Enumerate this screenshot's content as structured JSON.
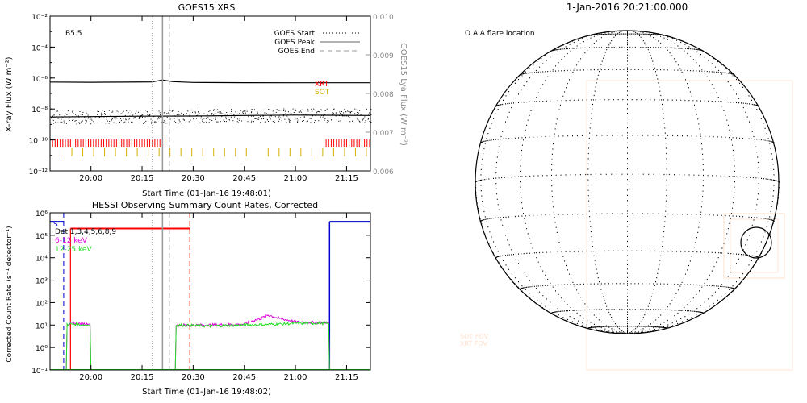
{
  "colors": {
    "black": "#000000",
    "gray": "#9a9a9a",
    "red": "#ff0000",
    "gold": "#d4b000",
    "magenta": "#e000e0",
    "green": "#22dd22",
    "blue": "#0000cc",
    "faint": "#ffe0cc"
  },
  "goes": {
    "title": "GOES15 XRS",
    "class_label": "B5.5",
    "ylabel": "X-ray Flux (W m⁻²)",
    "ylabel_right": "GOES15 Lya Flux (W m⁻²)",
    "xlabel": "Start Time (01-Jan-16 19:48:01)",
    "legend": [
      {
        "label": "GOES Start",
        "style": "dotted"
      },
      {
        "label": "GOES Peak",
        "style": "solid"
      },
      {
        "label": "GOES End",
        "style": "dashed"
      }
    ],
    "instrument_labels": [
      {
        "label": "XRT",
        "color": "#ff0000"
      },
      {
        "label": "SOT",
        "color": "#d4b000"
      }
    ]
  },
  "hessi": {
    "title": "HESSI Observing Summary Count Rates, Corrected",
    "ylabel": "Corrected Count Rate (s⁻¹ detector⁻¹)",
    "xlabel": "Start Time (01-Jan-16 19:48:02)",
    "flag_label": "S",
    "legend": [
      {
        "label": "Det 1,3,4,5,6,8,9",
        "color": "#000000"
      },
      {
        "label": "6-12 keV",
        "color": "#e000e0"
      },
      {
        "label": "12-25 keV",
        "color": "#22dd22"
      }
    ]
  },
  "sun": {
    "title": "1-Jan-2016 20:21:00.000",
    "legend": "O AIA flare location",
    "faint_labels": [
      "SOT FOV",
      "XRT FOV"
    ]
  },
  "chart_data": [
    {
      "type": "line",
      "title": "GOES15 XRS",
      "xlabel": "Start Time (01-Jan-16 19:48:01)",
      "ylabel": "X-ray Flux (W m⁻²)",
      "ylabel_right": "GOES15 Lya Flux (W m⁻²)",
      "x_range": [
        "19:48",
        "21:22"
      ],
      "ylim": [
        1e-12,
        0.01
      ],
      "ylim_right": [
        0.006,
        0.01
      ],
      "y_scale": "log",
      "x_ticks": [
        "20:00",
        "20:15",
        "20:30",
        "20:45",
        "21:00",
        "21:15"
      ],
      "y_ticks": [
        "10⁻¹²",
        "10⁻¹⁰",
        "10⁻⁸",
        "10⁻⁶",
        "10⁻⁴",
        "10⁻²"
      ],
      "y_ticks_right": [
        "0.006",
        "0.007",
        "0.008",
        "0.009",
        "0.010"
      ],
      "flare_times": {
        "start": "20:18",
        "peak": "20:21",
        "end": "20:23"
      },
      "series": [
        {
          "name": "",
          "x": [
            "19:48",
            "20:00",
            "20:10",
            "20:18",
            "20:21",
            "20:24",
            "20:30",
            "20:45",
            "21:00",
            "21:15",
            "21:22"
          ],
          "values": [
            5.5e-07,
            5.3e-07,
            5.4e-07,
            5.6e-07,
            7.5e-07,
            5.8e-07,
            5.2e-07,
            5e-07,
            4.9e-07,
            4.9e-07,
            4.9e-07
          ]
        },
        {
          "name": "",
          "x": [
            "19:48",
            "20:00",
            "20:15",
            "20:30",
            "20:45",
            "21:00",
            "21:15",
            "21:22"
          ],
          "values": [
            3e-09,
            3.2e-09,
            3.4e-09,
            3.5e-09,
            3.8e-09,
            4e-09,
            3.9e-09,
            3.8e-09
          ]
        }
      ],
      "coverage": [
        {
          "name": "XRT",
          "intervals": [
            [
              "19:48",
              "20:22"
            ],
            [
              "21:09",
              "21:22"
            ]
          ]
        },
        {
          "name": "SOT",
          "intervals": [
            [
              "19:48",
              "21:22"
            ]
          ]
        }
      ]
    },
    {
      "type": "line",
      "title": "HESSI Observing Summary Count Rates, Corrected",
      "xlabel": "Start Time (01-Jan-16 19:48:02)",
      "ylabel": "Corrected Count Rate (s⁻¹ detector⁻¹)",
      "x_range": [
        "19:48",
        "21:22"
      ],
      "ylim": [
        0.1,
        1000000.0
      ],
      "y_scale": "log",
      "x_ticks": [
        "20:00",
        "20:15",
        "20:30",
        "20:45",
        "21:00",
        "21:15"
      ],
      "y_ticks": [
        "10⁻¹",
        "10⁰",
        "10¹",
        "10²",
        "10³",
        "10⁴",
        "10⁵",
        "10⁶"
      ],
      "vlines": {
        "red_solid": "19:54",
        "blue_dashed": "19:52",
        "gray_dotted": "20:18",
        "gray_solid": "20:21",
        "gray_dashed": "20:23",
        "red_dashed": "20:29",
        "blue_solid": "21:10"
      },
      "series": [
        {
          "name": "6-12 keV",
          "x": [
            "19:52",
            "19:53",
            "19:55",
            "19:59",
            "20:00",
            "20:25",
            "20:35",
            "20:45",
            "20:50",
            "20:52",
            "20:55",
            "21:00",
            "21:05",
            "21:09",
            "21:10"
          ],
          "values": [
            0.1,
            11,
            12,
            11,
            0.1,
            10,
            10,
            11,
            20,
            28,
            20,
            14,
            13,
            13,
            0.1
          ]
        },
        {
          "name": "12-25 keV",
          "x": [
            "19:52",
            "19:53",
            "19:55",
            "19:59",
            "20:00",
            "20:25",
            "20:35",
            "20:45",
            "20:55",
            "21:00",
            "21:05",
            "21:09",
            "21:10"
          ],
          "values": [
            0.1,
            11,
            11,
            10,
            0.1,
            10,
            9,
            10,
            11,
            12,
            12,
            12,
            0.1
          ]
        }
      ],
      "attenuator": [
        {
          "value": 200000.0,
          "interval": [
            "19:54",
            "20:29"
          ]
        }
      ],
      "night": [
        {
          "value": 400000.0,
          "interval": [
            "19:48",
            "19:52"
          ]
        },
        {
          "value": 400000.0,
          "interval": [
            "21:10",
            "21:22"
          ]
        }
      ]
    }
  ]
}
